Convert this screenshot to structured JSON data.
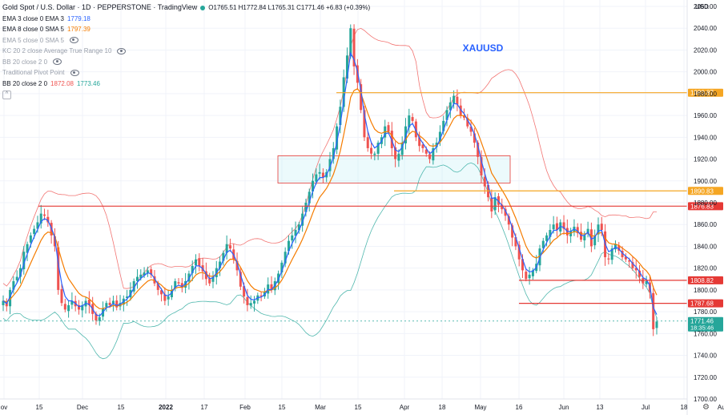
{
  "header": {
    "title": "Gold Spot / U.S. Dollar · 1D · PEPPERSTONE · TradingView",
    "ohlc": "O1765.51 H1772.84 L1765.31 C1771.46 +6.83 (+0.39%)"
  },
  "indicators": [
    {
      "label": "EMA 3 close 0 EMA 3",
      "value": "1779.18",
      "color": "#2962ff",
      "hidden": false
    },
    {
      "label": "EMA 8 close 0 SMA 5",
      "value": "1797.39",
      "color": "#f57c00",
      "hidden": false
    },
    {
      "label": "EMA 5 close 0 SMA 5",
      "value": "",
      "color": "",
      "hidden": true
    },
    {
      "label": "KC 20 2 close Average True Range 10",
      "value": "",
      "color": "",
      "hidden": true
    },
    {
      "label": "BB 20 close 2 0",
      "value": "",
      "color": "",
      "hidden": true
    },
    {
      "label": "Traditional Pivot Point",
      "value": "",
      "color": "",
      "hidden": true
    },
    {
      "label": "BB 20 close 2 0",
      "value": "1872.08 1773.46",
      "values_colors": [
        "#ef5350",
        "#26a69a"
      ],
      "hidden": false
    }
  ],
  "currency": "USD",
  "symbol_label": "XAUUSD",
  "chart_data": {
    "type": "candlestick",
    "title": "Gold Spot / U.S. Dollar",
    "symbol": "XAUUSD",
    "ylim": [
      1700,
      2060
    ],
    "y_ticks": [
      1700,
      1720,
      1740,
      1760,
      1780,
      1800,
      1820,
      1840,
      1860,
      1880,
      1900,
      1920,
      1940,
      1960,
      1980,
      2000,
      2020,
      2040,
      2060
    ],
    "x_ticks": [
      "ov",
      "15",
      "Dec",
      "15",
      "2022",
      "17",
      "Feb",
      "15",
      "Mar",
      "15",
      "Apr",
      "18",
      "May",
      "16",
      "Jun",
      "13",
      "Jul",
      "18",
      "Aug"
    ],
    "price_levels": [
      {
        "value": 1980.87,
        "label": "1980.87",
        "color": "#f5a623"
      },
      {
        "value": 1890.83,
        "label": "1890.83",
        "color": "#f5a623"
      },
      {
        "value": 1876.83,
        "label": "1876.83",
        "color": "#e53935"
      },
      {
        "value": 1808.82,
        "label": "1808.82",
        "color": "#e53935"
      },
      {
        "value": 1787.68,
        "label": "1787.68",
        "color": "#e53935"
      },
      {
        "value": 1771.46,
        "label": "1771.46",
        "color": "#26a69a",
        "sub": "18:35:46"
      }
    ],
    "zone": {
      "from": 1898,
      "to": 1923,
      "label": ""
    },
    "closes": [
      1790,
      1785,
      1800,
      1808,
      1812,
      1820,
      1835,
      1842,
      1850,
      1856,
      1862,
      1870,
      1868,
      1862,
      1850,
      1840,
      1800,
      1788,
      1782,
      1786,
      1790,
      1785,
      1782,
      1786,
      1790,
      1786,
      1778,
      1772,
      1775,
      1783,
      1788,
      1786,
      1790,
      1784,
      1788,
      1792,
      1794,
      1800,
      1808,
      1812,
      1814,
      1816,
      1818,
      1814,
      1806,
      1800,
      1796,
      1790,
      1794,
      1800,
      1808,
      1806,
      1802,
      1808,
      1815,
      1822,
      1828,
      1822,
      1817,
      1810,
      1806,
      1812,
      1820,
      1826,
      1834,
      1842,
      1838,
      1828,
      1818,
      1803,
      1794,
      1786,
      1788,
      1790,
      1795,
      1794,
      1798,
      1805,
      1800,
      1808,
      1815,
      1825,
      1835,
      1845,
      1850,
      1855,
      1860,
      1870,
      1880,
      1890,
      1900,
      1906,
      1908,
      1903,
      1908,
      1920,
      1930,
      1950,
      1968,
      1995,
      2015,
      2040,
      2005,
      1990,
      1965,
      1940,
      1930,
      1925,
      1925,
      1935,
      1940,
      1950,
      1945,
      1930,
      1920,
      1925,
      1935,
      1950,
      1960,
      1955,
      1940,
      1932,
      1930,
      1925,
      1920,
      1930,
      1935,
      1945,
      1955,
      1965,
      1972,
      1978,
      1970,
      1960,
      1958,
      1950,
      1945,
      1935,
      1922,
      1905,
      1895,
      1885,
      1872,
      1885,
      1878,
      1874,
      1868,
      1860,
      1848,
      1840,
      1828,
      1818,
      1810,
      1814,
      1818,
      1824,
      1838,
      1845,
      1850,
      1855,
      1860,
      1855,
      1862,
      1856,
      1850,
      1854,
      1858,
      1852,
      1846,
      1850,
      1856,
      1840,
      1850,
      1860,
      1855,
      1830,
      1828,
      1838,
      1842,
      1836,
      1830,
      1828,
      1826,
      1820,
      1818,
      1812,
      1806,
      1808,
      1798,
      1764,
      1771
    ]
  }
}
